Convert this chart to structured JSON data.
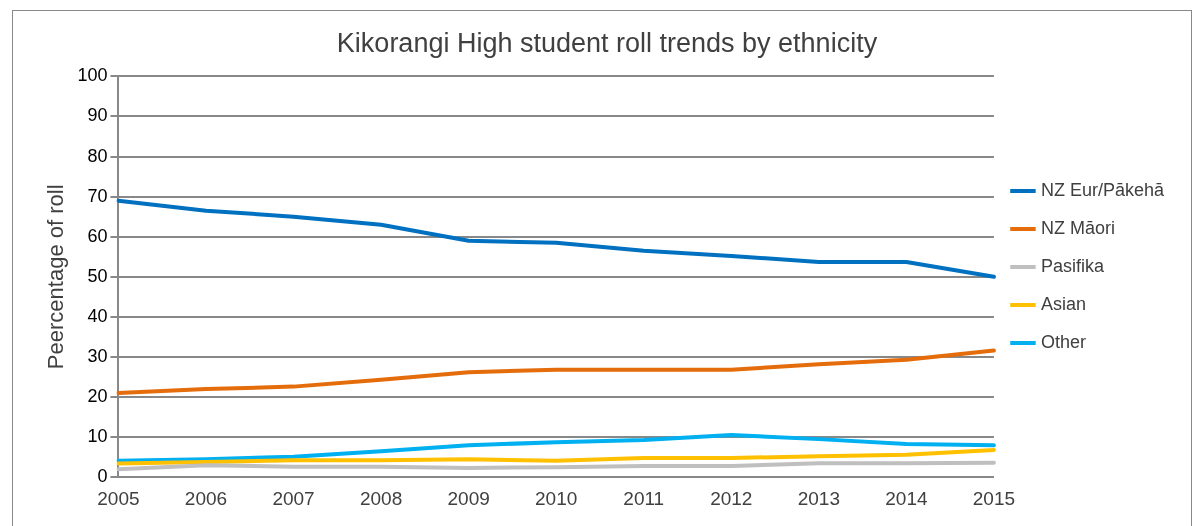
{
  "chart_data": {
    "type": "line",
    "title": "Kikorangi High student roll trends by ethnicity",
    "ylabel": "Peercentage of roll",
    "categories": [
      "2005",
      "2006",
      "2007",
      "2008",
      "2009",
      "2010",
      "2011",
      "2012",
      "2013",
      "2014",
      "2015"
    ],
    "series": [
      {
        "name": "NZ Eur/Pākehā",
        "color": "#0070c0",
        "values": [
          69,
          66.5,
          65,
          63,
          59,
          58.5,
          56.5,
          55.2,
          53.7,
          53.7,
          50
        ]
      },
      {
        "name": "NZ Māori",
        "color": "#e46c0a",
        "values": [
          21,
          22,
          22.6,
          24.3,
          26.2,
          26.8,
          26.8,
          26.8,
          28.2,
          29.3,
          31.6
        ]
      },
      {
        "name": "Pasifika",
        "color": "#bfbfbf",
        "values": [
          2,
          3,
          2.6,
          2.6,
          2.3,
          2.5,
          2.8,
          2.8,
          3.5,
          3.5,
          3.6
        ]
      },
      {
        "name": "Asian",
        "color": "#ffc000",
        "values": [
          3.4,
          3.8,
          4.2,
          4.2,
          4.5,
          4.1,
          4.8,
          4.8,
          5.2,
          5.6,
          6.8
        ]
      },
      {
        "name": "Other",
        "color": "#00b0f0",
        "values": [
          4.1,
          4.5,
          5.1,
          6.5,
          8,
          8.7,
          9.3,
          10.5,
          9.5,
          8.3,
          8
        ]
      }
    ],
    "ylim": [
      0,
      100
    ],
    "yticks": [
      0,
      10,
      20,
      30,
      40,
      50,
      60,
      70,
      80,
      90,
      100
    ],
    "grid": "y",
    "legend": "right",
    "marker": "none",
    "line_style": "solid"
  }
}
